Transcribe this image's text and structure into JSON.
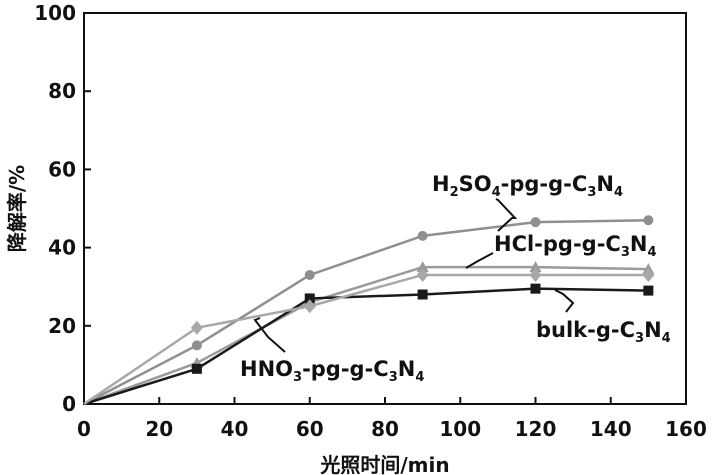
{
  "chart_data": {
    "type": "line",
    "xlabel": "光照时间/min",
    "ylabel": "降解率/%",
    "xlim": [
      0,
      160
    ],
    "ylim": [
      0,
      100
    ],
    "xticks": [
      0,
      20,
      40,
      60,
      80,
      100,
      120,
      140,
      160
    ],
    "yticks": [
      0,
      20,
      40,
      60,
      80,
      100
    ],
    "grid": false,
    "legend": "inline labels",
    "series": [
      {
        "name": "H2SO4-pg-g-C3N4",
        "label_parts": [
          [
            "H",
            ""
          ],
          [
            "2",
            "sub"
          ],
          [
            "SO",
            ""
          ],
          [
            "4",
            "sub"
          ],
          [
            "-pg-g-C",
            ""
          ],
          [
            "3",
            "sub"
          ],
          [
            "N",
            ""
          ],
          [
            "4",
            "sub"
          ]
        ],
        "marker": "circle",
        "color": "#8f8f8f",
        "x": [
          0,
          30,
          60,
          90,
          120,
          150
        ],
        "y": [
          0,
          15,
          33,
          43,
          46.5,
          47
        ]
      },
      {
        "name": "HCl-pg-g-C3N4",
        "label_parts": [
          [
            "HCl-pg-g-C",
            ""
          ],
          [
            "3",
            "sub"
          ],
          [
            "N",
            ""
          ],
          [
            "4",
            "sub"
          ]
        ],
        "marker": "triangle",
        "color": "#9a9a9a",
        "x": [
          0,
          30,
          60,
          90,
          120,
          150
        ],
        "y": [
          0,
          10.5,
          26,
          35,
          35,
          34.5
        ]
      },
      {
        "name": "bulk-g-C3N4",
        "label_parts": [
          [
            "bulk-g-C",
            ""
          ],
          [
            "3",
            "sub"
          ],
          [
            "N",
            ""
          ],
          [
            "4",
            "sub"
          ]
        ],
        "marker": "square",
        "color": "#1a1a1a",
        "x": [
          0,
          30,
          60,
          90,
          120,
          150
        ],
        "y": [
          0,
          9,
          27,
          28,
          29.5,
          29
        ]
      },
      {
        "name": "HNO3-pg-g-C3N4",
        "label_parts": [
          [
            "HNO",
            ""
          ],
          [
            "3",
            "sub"
          ],
          [
            "-pg-g-C",
            ""
          ],
          [
            "3",
            "sub"
          ],
          [
            "N",
            ""
          ],
          [
            "4",
            "sub"
          ]
        ],
        "marker": "diamond",
        "color": "#a8a8a8",
        "x": [
          0,
          30,
          60,
          90,
          120,
          150
        ],
        "y": [
          0,
          19.5,
          25,
          33,
          33,
          33
        ]
      }
    ]
  }
}
